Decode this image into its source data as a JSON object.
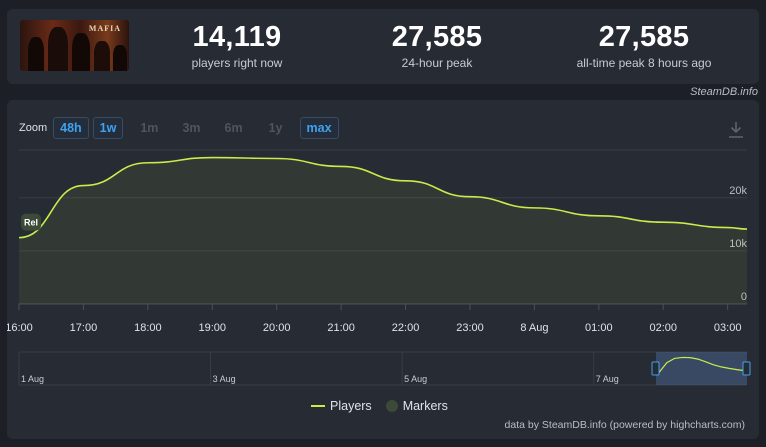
{
  "header": {
    "game_thumb_title": "MAFIA",
    "stats": [
      {
        "value": "14,119",
        "label": "players right now"
      },
      {
        "value": "27,585",
        "label": "24-hour peak"
      },
      {
        "value": "27,585",
        "label": "all-time peak 8 hours ago"
      }
    ]
  },
  "watermark": "SteamDB.info",
  "zoom": {
    "label": "Zoom",
    "buttons": [
      {
        "label": "48h",
        "active": true
      },
      {
        "label": "1w",
        "active": true
      },
      {
        "label": "1m",
        "active": false
      },
      {
        "label": "3m",
        "active": false
      },
      {
        "label": "6m",
        "active": false
      },
      {
        "label": "1y",
        "active": false
      },
      {
        "label": "max",
        "active": true
      }
    ]
  },
  "chart_data": {
    "type": "line",
    "title": "",
    "series": [
      {
        "name": "Players",
        "color": "#c8ec4b",
        "x": [
          "16:00",
          "17:00",
          "18:00",
          "19:00",
          "20:00",
          "21:00",
          "22:00",
          "23:00",
          "8 Aug",
          "01:00",
          "02:00",
          "03:00"
        ],
        "points": [
          {
            "t": 0.0,
            "v": 12500
          },
          {
            "t": 1.0,
            "v": 22300
          },
          {
            "t": 2.0,
            "v": 26600
          },
          {
            "t": 3.0,
            "v": 27585
          },
          {
            "t": 4.0,
            "v": 27400
          },
          {
            "t": 5.0,
            "v": 25900
          },
          {
            "t": 6.0,
            "v": 23200
          },
          {
            "t": 7.0,
            "v": 20200
          },
          {
            "t": 8.0,
            "v": 18100
          },
          {
            "t": 9.0,
            "v": 16600
          },
          {
            "t": 10.0,
            "v": 15400
          },
          {
            "t": 11.0,
            "v": 14400
          },
          {
            "t": 11.3,
            "v": 14119
          }
        ]
      }
    ],
    "categories": [
      "16:00",
      "17:00",
      "18:00",
      "19:00",
      "20:00",
      "21:00",
      "22:00",
      "23:00",
      "8 Aug",
      "01:00",
      "02:00",
      "03:00"
    ],
    "y_ticks": [
      {
        "value": 0,
        "label": "0"
      },
      {
        "value": 10000,
        "label": "10k"
      },
      {
        "value": 20000,
        "label": "20k"
      }
    ],
    "ylim": [
      0,
      29000
    ],
    "xlim": [
      0,
      11.3
    ],
    "marker": {
      "label": "Rel",
      "t": 0.0
    },
    "navigator": {
      "labels": [
        {
          "label": "1 Aug",
          "day": 1
        },
        {
          "label": "3 Aug",
          "day": 3
        },
        {
          "label": "5 Aug",
          "day": 5
        },
        {
          "label": "7 Aug",
          "day": 7
        }
      ],
      "range_days": [
        1,
        8.6
      ],
      "selection_days": [
        7.65,
        8.6
      ]
    },
    "legend": [
      {
        "name": "Players",
        "kind": "line"
      },
      {
        "name": "Markers",
        "kind": "dot"
      }
    ]
  },
  "credits": "data by SteamDB.info (powered by highcharts.com)"
}
